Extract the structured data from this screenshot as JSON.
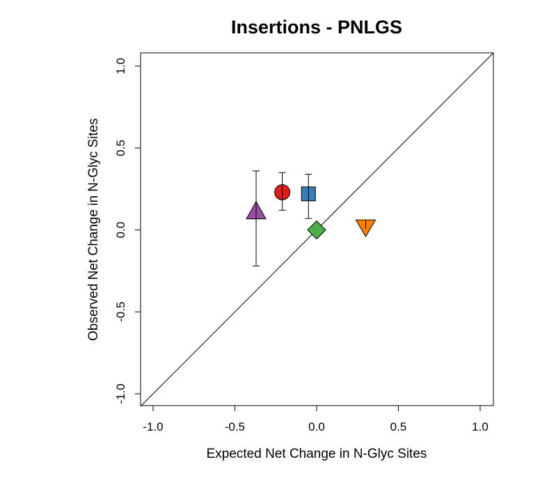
{
  "chart_data": {
    "type": "scatter",
    "title": "Insertions - PNLGS",
    "xlabel": "Expected Net Change in N-Glyc Sites",
    "ylabel": "Observed Net Change in N-Glyc Sites",
    "xlim": [
      -1.0,
      1.0
    ],
    "ylim": [
      -1.0,
      1.0
    ],
    "xticks": [
      "-1.0",
      "-0.5",
      "0.0",
      "0.5",
      "1.0"
    ],
    "yticks": [
      "-1.0",
      "-0.5",
      "0.0",
      "0.5",
      "1.0"
    ],
    "reference_line": "y = x",
    "grid": false,
    "points": [
      {
        "x": -0.37,
        "y": 0.11,
        "y_low": -0.22,
        "y_high": 0.36,
        "shape": "triangle-up",
        "color": "#984EA3"
      },
      {
        "x": -0.21,
        "y": 0.23,
        "y_low": 0.12,
        "y_high": 0.35,
        "shape": "circle",
        "color": "#E41A1C"
      },
      {
        "x": -0.05,
        "y": 0.22,
        "y_low": 0.07,
        "y_high": 0.34,
        "shape": "square",
        "color": "#377EB8"
      },
      {
        "x": 0.0,
        "y": 0.0,
        "y_low": 0.0,
        "y_high": 0.0,
        "shape": "diamond",
        "color": "#4DAF4A"
      },
      {
        "x": 0.3,
        "y": 0.01,
        "y_low": 0.01,
        "y_high": 0.01,
        "shape": "triangle-down",
        "color": "#FF7F00"
      }
    ]
  }
}
